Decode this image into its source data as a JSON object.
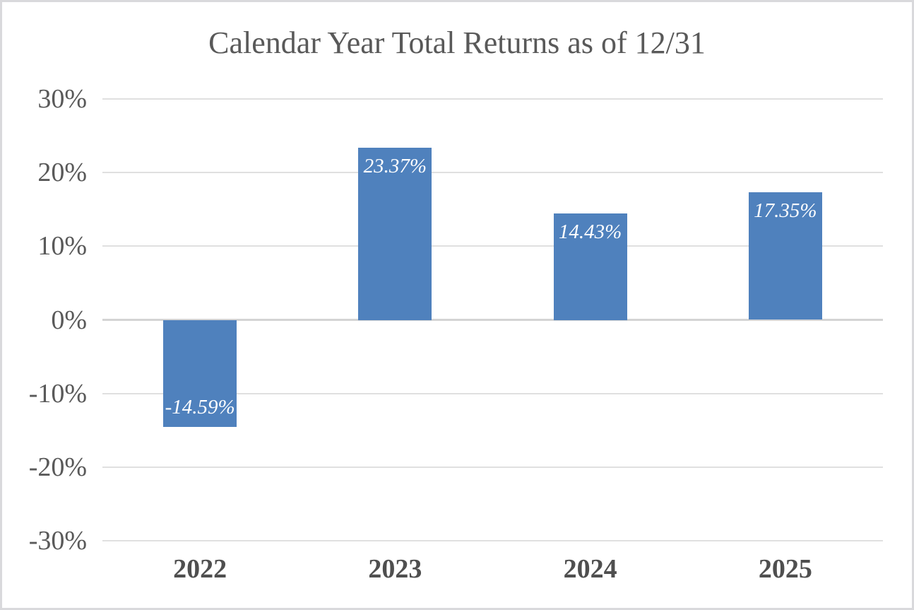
{
  "chart_data": {
    "type": "bar",
    "title": "Calendar Year Total Returns as of 12/31",
    "categories": [
      "2022",
      "2023",
      "2024",
      "2025"
    ],
    "values": [
      -14.59,
      23.37,
      14.43,
      17.35
    ],
    "data_labels": [
      "-14.59%",
      "23.37%",
      "14.43%",
      "17.35%"
    ],
    "xlabel": "",
    "ylabel": "",
    "ylim": [
      -30,
      30
    ],
    "yticks": [
      30,
      20,
      10,
      0,
      -10,
      -20,
      -30
    ],
    "ytick_labels": [
      "30%",
      "20%",
      "10%",
      "0%",
      "-10%",
      "-20%",
      "-30%"
    ],
    "grid": "horizontal",
    "legend": false,
    "colors": {
      "bar": "#4f81bd",
      "data_label_text": "#ffffff",
      "gridline": "#e0e0e0",
      "zero_line": "#d4d4d4",
      "axis_text": "#595959",
      "category_text": "#4f4f4f",
      "title_text": "#595959",
      "canvas_border": "#d9d9dc",
      "background": "#ffffff"
    }
  }
}
